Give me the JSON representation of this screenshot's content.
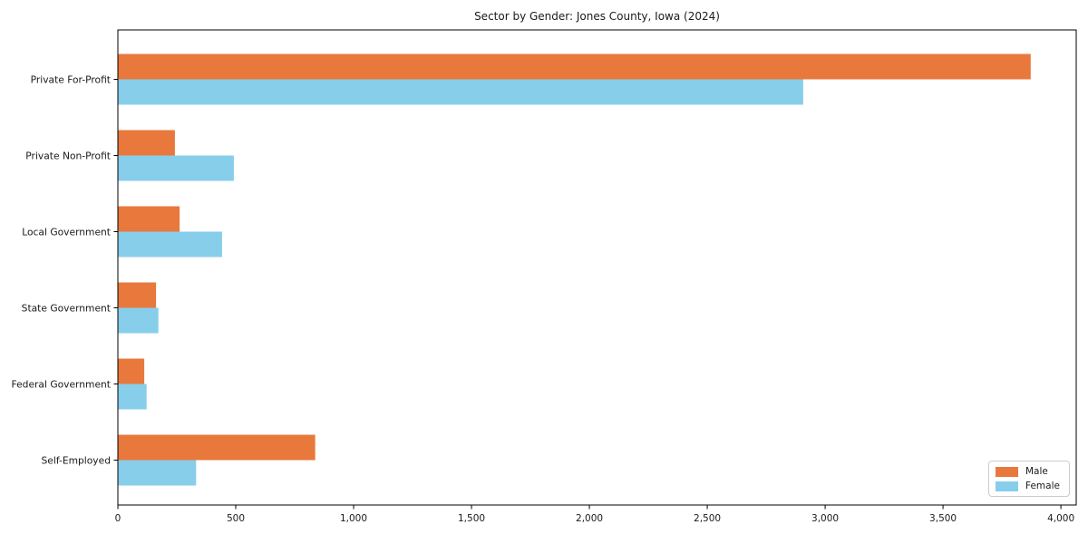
{
  "chart_data": {
    "type": "bar",
    "orientation": "horizontal",
    "title": "Sector by Gender: Jones County, Iowa (2024)",
    "categories": [
      "Private For-Profit",
      "Private Non-Profit",
      "Local Government",
      "State Government",
      "Federal Government",
      "Self-Employed"
    ],
    "series": [
      {
        "name": "Male",
        "color": "#e8783c",
        "values": [
          3870,
          240,
          260,
          160,
          110,
          835
        ]
      },
      {
        "name": "Female",
        "color": "#87ceeb",
        "values": [
          2905,
          490,
          440,
          170,
          120,
          330
        ]
      }
    ],
    "xlabel": "",
    "ylabel": "",
    "xlim": [
      0,
      4065
    ],
    "xticks": [
      0,
      500,
      1000,
      1500,
      2000,
      2500,
      3000,
      3500,
      4000
    ],
    "xtick_labels": [
      "0",
      "500",
      "1,000",
      "1,500",
      "2,000",
      "2,500",
      "3,000",
      "3,500",
      "4,000"
    ],
    "grid": false,
    "legend_position": "lower right",
    "axis_color": "#000000",
    "text_color": "#1a1a1a"
  }
}
